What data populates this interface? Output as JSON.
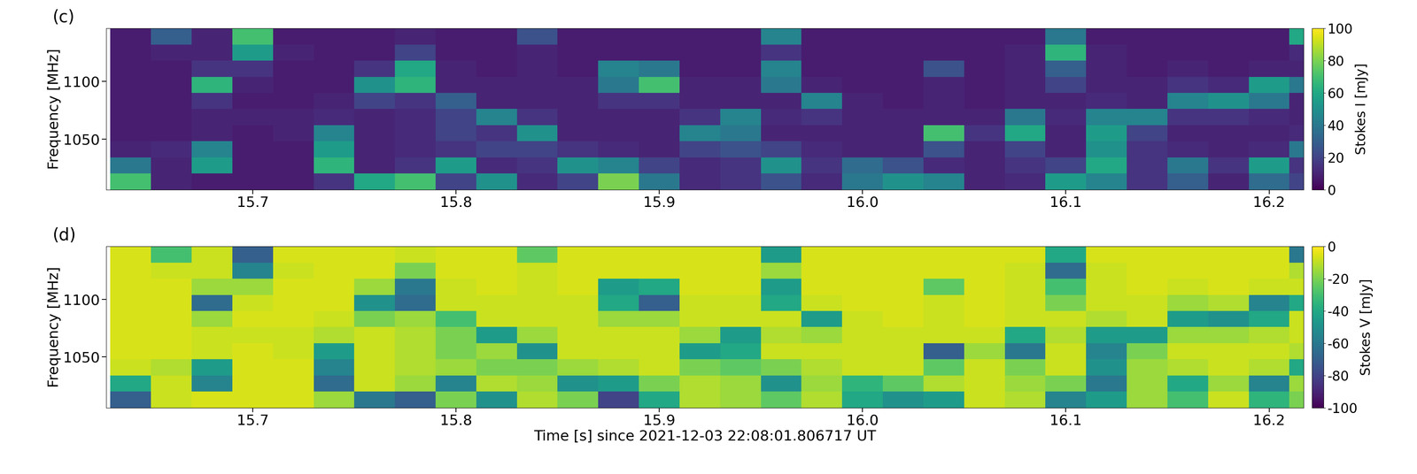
{
  "chart_data": [
    {
      "type": "heatmap",
      "title": "(c)",
      "y_label": "Frequency [MHz]",
      "color": "viridis",
      "x_bins": [
        15.63,
        15.65,
        15.67,
        15.69,
        15.71,
        15.73,
        15.75,
        15.77,
        15.79,
        15.81,
        15.83,
        15.85,
        15.87,
        15.89,
        15.91,
        15.93,
        15.95,
        15.97,
        15.99,
        16.01,
        16.03,
        16.05,
        16.07,
        16.09,
        16.11,
        16.13,
        16.15,
        16.17,
        16.19,
        16.21,
        16.23
      ],
      "y_bins": [
        1006,
        1020,
        1034,
        1048,
        1062,
        1076,
        1090,
        1104,
        1118,
        1132,
        1146
      ],
      "xlim": [
        15.628,
        16.217
      ],
      "ylim": [
        1006,
        1146
      ],
      "xticks": [
        15.7,
        15.8,
        15.9,
        16.0,
        16.1,
        16.2
      ],
      "yticks": [
        1050,
        1100
      ],
      "cells": [
        [
          70,
          10,
          8,
          8,
          8,
          15,
          60,
          70,
          20,
          50,
          12,
          20,
          80,
          40,
          12,
          15,
          25,
          12,
          40,
          50,
          45,
          10,
          12,
          55,
          45,
          15,
          30,
          10,
          35,
          20
        ],
        [
          40,
          10,
          55,
          8,
          8,
          65,
          10,
          15,
          55,
          12,
          15,
          50,
          45,
          20,
          12,
          15,
          50,
          15,
          35,
          25,
          12,
          10,
          15,
          20,
          60,
          15,
          40,
          15,
          55,
          15
        ],
        [
          10,
          12,
          45,
          8,
          8,
          55,
          10,
          12,
          15,
          20,
          20,
          15,
          12,
          10,
          20,
          25,
          20,
          12,
          10,
          10,
          25,
          10,
          20,
          10,
          50,
          15,
          12,
          10,
          12,
          40
        ],
        [
          8,
          8,
          10,
          8,
          10,
          45,
          10,
          12,
          20,
          15,
          50,
          10,
          10,
          10,
          45,
          40,
          10,
          10,
          10,
          10,
          70,
          15,
          60,
          10,
          55,
          20,
          10,
          10,
          10,
          12
        ],
        [
          8,
          8,
          10,
          10,
          10,
          12,
          10,
          12,
          20,
          45,
          15,
          10,
          10,
          10,
          15,
          45,
          12,
          15,
          10,
          10,
          10,
          10,
          40,
          12,
          45,
          45,
          15,
          15,
          12,
          10
        ],
        [
          8,
          8,
          15,
          8,
          8,
          10,
          20,
          15,
          30,
          10,
          10,
          10,
          15,
          15,
          10,
          10,
          10,
          45,
          10,
          8,
          10,
          8,
          10,
          10,
          12,
          10,
          45,
          50,
          40,
          10
        ],
        [
          8,
          8,
          65,
          10,
          8,
          8,
          50,
          65,
          10,
          10,
          10,
          10,
          40,
          70,
          10,
          10,
          40,
          10,
          8,
          8,
          10,
          8,
          10,
          20,
          10,
          10,
          15,
          12,
          55,
          40
        ],
        [
          8,
          8,
          15,
          15,
          8,
          8,
          15,
          60,
          10,
          8,
          10,
          8,
          45,
          40,
          8,
          8,
          45,
          8,
          8,
          8,
          25,
          8,
          10,
          30,
          10,
          8,
          10,
          8,
          10,
          10
        ],
        [
          8,
          10,
          10,
          55,
          10,
          8,
          8,
          20,
          8,
          8,
          10,
          8,
          8,
          8,
          8,
          8,
          15,
          8,
          8,
          8,
          8,
          8,
          10,
          65,
          10,
          8,
          8,
          8,
          8,
          12
        ],
        [
          8,
          30,
          10,
          70,
          8,
          8,
          8,
          10,
          8,
          8,
          25,
          8,
          8,
          8,
          8,
          8,
          45,
          8,
          8,
          8,
          8,
          8,
          8,
          40,
          8,
          8,
          8,
          8,
          8,
          60
        ]
      ],
      "colorbar": {
        "label": "Stokes I [mJy]",
        "range": [
          0,
          100
        ],
        "ticks": [
          0,
          20,
          40,
          60,
          80,
          100
        ]
      }
    },
    {
      "type": "heatmap",
      "title": "(d)",
      "y_label": "Frequency [MHz]",
      "x_label": "Time [s] since 2021-12-03 22:08:01.806717 UT",
      "color": "viridis",
      "x_bins": [
        15.63,
        15.65,
        15.67,
        15.69,
        15.71,
        15.73,
        15.75,
        15.77,
        15.79,
        15.81,
        15.83,
        15.85,
        15.87,
        15.89,
        15.91,
        15.93,
        15.95,
        15.97,
        15.99,
        16.01,
        16.03,
        16.05,
        16.07,
        16.09,
        16.11,
        16.13,
        16.15,
        16.17,
        16.19,
        16.21,
        16.23
      ],
      "y_bins": [
        1006,
        1020,
        1034,
        1048,
        1062,
        1076,
        1090,
        1104,
        1118,
        1132,
        1146
      ],
      "xlim": [
        15.628,
        16.217
      ],
      "ylim": [
        1006,
        1146
      ],
      "xticks": [
        15.7,
        15.8,
        15.9,
        16.0,
        16.1,
        16.2
      ],
      "yticks": [
        1050,
        1100
      ],
      "cells": [
        [
          -70,
          -8,
          -6,
          -6,
          -6,
          -15,
          -60,
          -70,
          -20,
          -50,
          -12,
          -20,
          -80,
          -40,
          -12,
          -15,
          -25,
          -12,
          -40,
          -50,
          -45,
          -8,
          -12,
          -55,
          -45,
          -15,
          -30,
          -8,
          -35,
          -20
        ],
        [
          -40,
          -8,
          -55,
          -6,
          -6,
          -65,
          -8,
          -15,
          -55,
          -12,
          -15,
          -50,
          -45,
          -20,
          -12,
          -15,
          -50,
          -15,
          -35,
          -25,
          -12,
          -8,
          -15,
          -20,
          -60,
          -15,
          -40,
          -15,
          -55,
          -15
        ],
        [
          -8,
          -12,
          -45,
          -6,
          -6,
          -55,
          -8,
          -12,
          -15,
          -20,
          -20,
          -15,
          -12,
          -8,
          -20,
          -25,
          -20,
          -12,
          -8,
          -8,
          -25,
          -8,
          -20,
          -8,
          -50,
          -15,
          -12,
          -8,
          -12,
          -40
        ],
        [
          -6,
          -6,
          -8,
          -6,
          -8,
          -45,
          -8,
          -12,
          -20,
          -15,
          -50,
          -8,
          -8,
          -8,
          -45,
          -40,
          -8,
          -8,
          -8,
          -8,
          -70,
          -15,
          -60,
          -8,
          -55,
          -20,
          -8,
          -8,
          -8,
          -12
        ],
        [
          -6,
          -6,
          -8,
          -8,
          -8,
          -12,
          -8,
          -12,
          -20,
          -45,
          -15,
          -8,
          -8,
          -8,
          -15,
          -45,
          -12,
          -15,
          -8,
          -8,
          -8,
          -8,
          -40,
          -12,
          -45,
          -45,
          -15,
          -15,
          -12,
          -8
        ],
        [
          -6,
          -6,
          -15,
          -6,
          -6,
          -8,
          -20,
          -15,
          -30,
          -8,
          -8,
          -8,
          -15,
          -15,
          -8,
          -8,
          -8,
          -45,
          -8,
          -6,
          -8,
          -6,
          -8,
          -8,
          -12,
          -8,
          -45,
          -50,
          -40,
          -8
        ],
        [
          -6,
          -6,
          -65,
          -8,
          -6,
          -6,
          -50,
          -65,
          -8,
          -8,
          -8,
          -8,
          -40,
          -70,
          -8,
          -8,
          -40,
          -8,
          -6,
          -6,
          -8,
          -6,
          -8,
          -20,
          -8,
          -8,
          -15,
          -12,
          -55,
          -40
        ],
        [
          -6,
          -6,
          -15,
          -15,
          -6,
          -6,
          -15,
          -60,
          -8,
          -6,
          -8,
          -6,
          -45,
          -40,
          -6,
          -6,
          -45,
          -6,
          -6,
          -6,
          -25,
          -6,
          -8,
          -30,
          -8,
          -6,
          -8,
          -6,
          -8,
          -8
        ],
        [
          -6,
          -8,
          -8,
          -55,
          -8,
          -6,
          -6,
          -20,
          -6,
          -6,
          -8,
          -6,
          -6,
          -6,
          -6,
          -6,
          -15,
          -6,
          -6,
          -6,
          -6,
          -6,
          -8,
          -65,
          -8,
          -6,
          -6,
          -6,
          -6,
          -12
        ],
        [
          -6,
          -30,
          -8,
          -70,
          -6,
          -6,
          -6,
          -8,
          -6,
          -6,
          -25,
          -6,
          -6,
          -6,
          -6,
          -6,
          -45,
          -6,
          -6,
          -6,
          -6,
          -6,
          -6,
          -40,
          -6,
          -6,
          -6,
          -6,
          -6,
          -60
        ]
      ],
      "colorbar": {
        "label": "Stokes V [mJy]",
        "range": [
          -100,
          0
        ],
        "ticks": [
          -100,
          -80,
          -60,
          -40,
          -20,
          0
        ]
      }
    }
  ]
}
